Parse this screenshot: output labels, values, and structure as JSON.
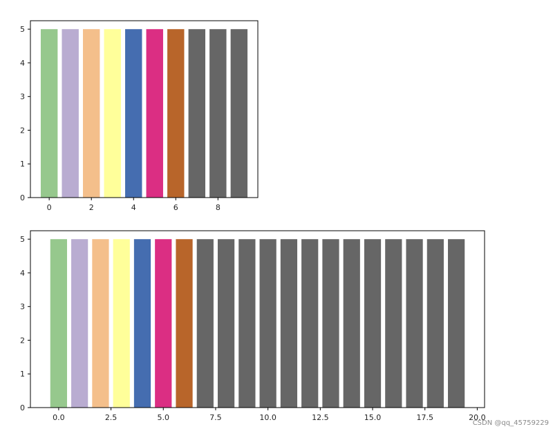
{
  "watermark": "CSDN @qq_45759229",
  "colors": {
    "palette": [
      "#96c88d",
      "#b9acd1",
      "#f4bf8b",
      "#ffff9a",
      "#456db0",
      "#db2e83",
      "#b8652a",
      "#666666"
    ],
    "bar_default": "#666666",
    "axes": "#000000"
  },
  "chart_data": [
    {
      "type": "bar",
      "x": [
        0,
        1,
        2,
        3,
        4,
        5,
        6,
        7,
        8,
        9
      ],
      "values": [
        5,
        5,
        5,
        5,
        5,
        5,
        5,
        5,
        5,
        5
      ],
      "bar_width": 0.8,
      "xlim": [
        -0.89,
        9.89
      ],
      "ylim": [
        0,
        5.25
      ],
      "xticks": [
        0,
        2,
        4,
        6,
        8
      ],
      "xtick_labels": [
        "0",
        "2",
        "4",
        "6",
        "8"
      ],
      "yticks": [
        0,
        1,
        2,
        3,
        4,
        5
      ],
      "ytick_labels": [
        "0",
        "1",
        "2",
        "3",
        "4",
        "5"
      ],
      "grid": false,
      "title": "",
      "xlabel": "",
      "ylabel": ""
    },
    {
      "type": "bar",
      "x": [
        0,
        1,
        2,
        3,
        4,
        5,
        6,
        7,
        8,
        9,
        10,
        11,
        12,
        13,
        14,
        15,
        16,
        17,
        18,
        19
      ],
      "values": [
        5,
        5,
        5,
        5,
        5,
        5,
        5,
        5,
        5,
        5,
        5,
        5,
        5,
        5,
        5,
        5,
        5,
        5,
        5,
        5
      ],
      "bar_width": 0.8,
      "xlim": [
        -1.35,
        20.35
      ],
      "ylim": [
        0,
        5.25
      ],
      "xticks": [
        0,
        2.5,
        5,
        7.5,
        10,
        12.5,
        15,
        17.5,
        20
      ],
      "xtick_labels": [
        "0.0",
        "2.5",
        "5.0",
        "7.5",
        "10.0",
        "12.5",
        "15.0",
        "17.5",
        "20.0"
      ],
      "yticks": [
        0,
        1,
        2,
        3,
        4,
        5
      ],
      "ytick_labels": [
        "0",
        "1",
        "2",
        "3",
        "4",
        "5"
      ],
      "grid": false,
      "title": "",
      "xlabel": "",
      "ylabel": ""
    }
  ]
}
